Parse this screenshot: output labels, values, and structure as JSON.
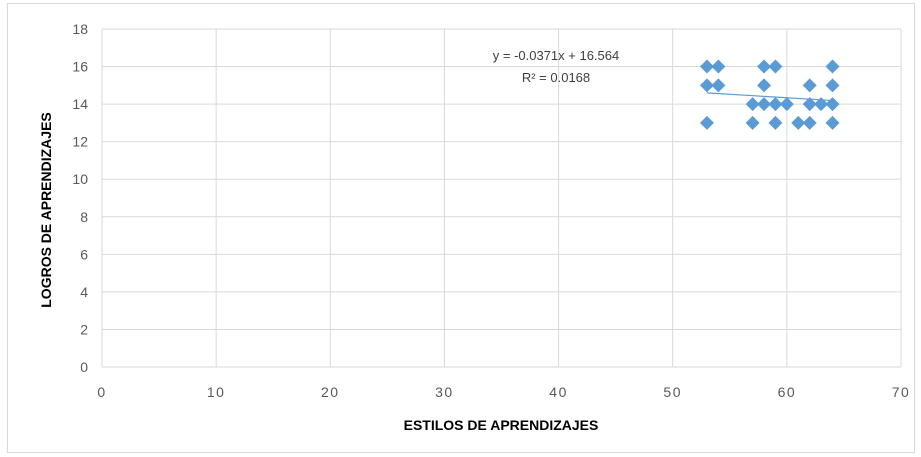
{
  "chart_data": {
    "type": "scatter",
    "title": "",
    "xlabel": "ESTILOS DE APRENDIZAJES",
    "ylabel": "LOGROS DE APRENDIZAJES",
    "xlim": [
      0,
      70
    ],
    "ylim": [
      0,
      18
    ],
    "x_ticks": [
      "0",
      "10",
      "20",
      "30",
      "40",
      "50",
      "60",
      "70"
    ],
    "y_ticks": [
      "0",
      "2",
      "4",
      "6",
      "8",
      "10",
      "12",
      "14",
      "16",
      "18"
    ],
    "grid": true,
    "legend": "none",
    "marker": "diamond",
    "colors": {
      "points": "#5b9bd5",
      "trendline": "#5b9bd5",
      "grid": "#d9d9d9"
    },
    "series": [
      {
        "points": [
          [
            53,
            16
          ],
          [
            54,
            16
          ],
          [
            58,
            16
          ],
          [
            59,
            16
          ],
          [
            64,
            16
          ],
          [
            53,
            15
          ],
          [
            54,
            15
          ],
          [
            58,
            15
          ],
          [
            62,
            15
          ],
          [
            64,
            15
          ],
          [
            57,
            14
          ],
          [
            58,
            14
          ],
          [
            59,
            14
          ],
          [
            60,
            14
          ],
          [
            62,
            14
          ],
          [
            63,
            14
          ],
          [
            64,
            14
          ],
          [
            53,
            13
          ],
          [
            57,
            13
          ],
          [
            59,
            13
          ],
          [
            61,
            13
          ],
          [
            62,
            13
          ],
          [
            64,
            13
          ]
        ]
      }
    ],
    "trendline": {
      "type": "linear",
      "slope": -0.0371,
      "intercept": 16.564,
      "x_range": [
        53,
        64
      ],
      "equation_label": "y = -0.0371x + 16.564",
      "r2_label": "R² = 0.0168"
    }
  }
}
